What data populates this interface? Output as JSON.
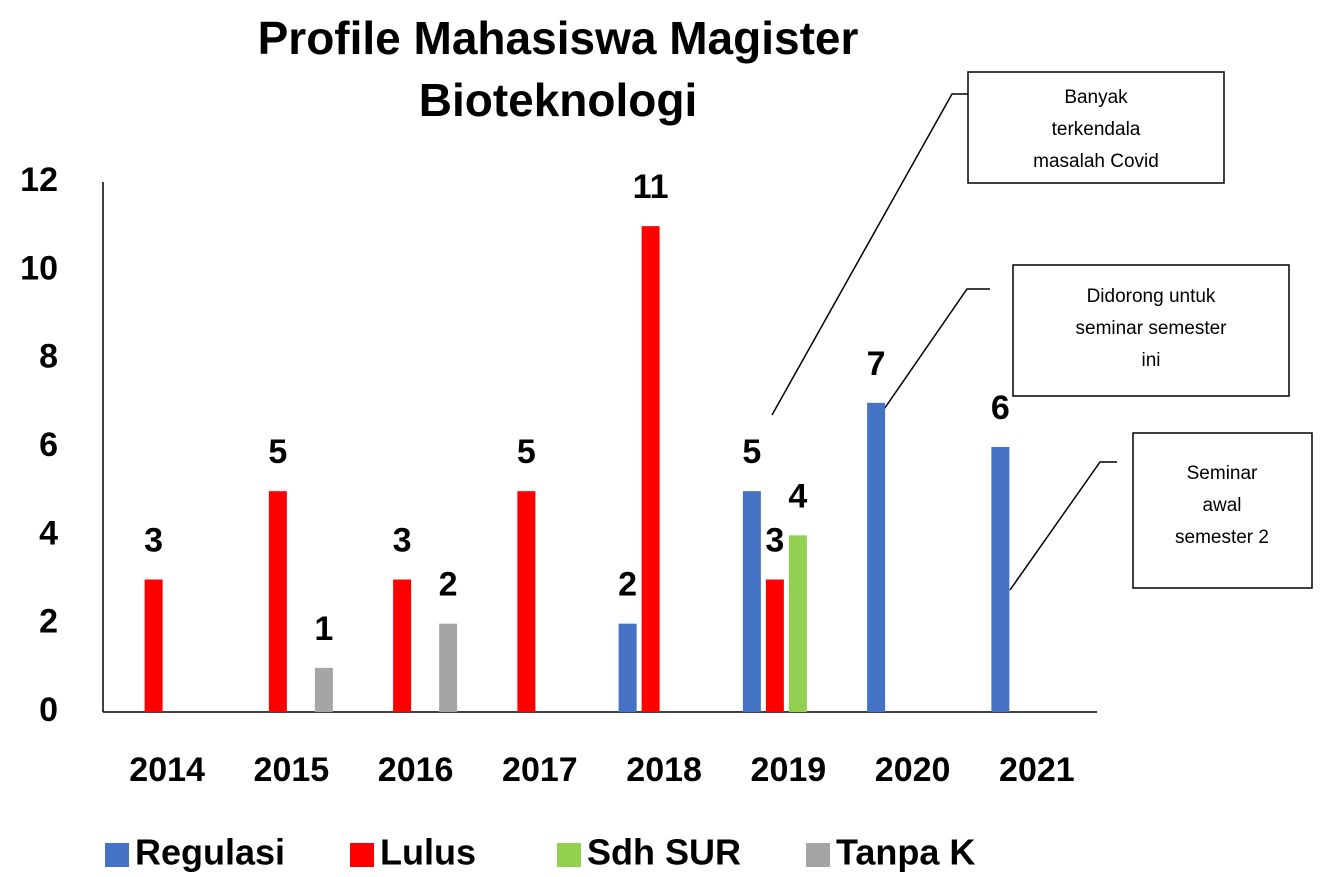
{
  "chart_data": {
    "type": "bar",
    "title": [
      "Profile Mahasiswa Magister",
      "Bioteknologi"
    ],
    "categories": [
      "2014",
      "2015",
      "2016",
      "2017",
      "2018",
      "2019",
      "2020",
      "2021"
    ],
    "series": [
      {
        "name": "Regulasi",
        "color": "#4472c4",
        "values": [
          null,
          null,
          null,
          null,
          2,
          5,
          7,
          6
        ]
      },
      {
        "name": "Lulus",
        "color": "#ff0000",
        "values": [
          3,
          5,
          3,
          5,
          11,
          3,
          null,
          null
        ]
      },
      {
        "name": "Sdh SUR",
        "color": "#92d050",
        "values": [
          null,
          null,
          null,
          null,
          null,
          4,
          null,
          null
        ]
      },
      {
        "name": "Tanpa K",
        "color": "#a5a5a5",
        "values": [
          null,
          1,
          2,
          null,
          null,
          null,
          null,
          null
        ]
      }
    ],
    "ylim": [
      0,
      12
    ],
    "yticks": [
      0,
      2,
      4,
      6,
      8,
      10,
      12
    ],
    "grid": false,
    "legend": "bottom",
    "annotations": [
      {
        "lines": [
          "Banyak",
          "terkendala",
          "masalah Covid"
        ]
      },
      {
        "lines": [
          "Didorong untuk",
          "seminar semester",
          "ini"
        ]
      },
      {
        "lines": [
          "Seminar",
          "awal",
          "semester 2"
        ]
      }
    ]
  }
}
